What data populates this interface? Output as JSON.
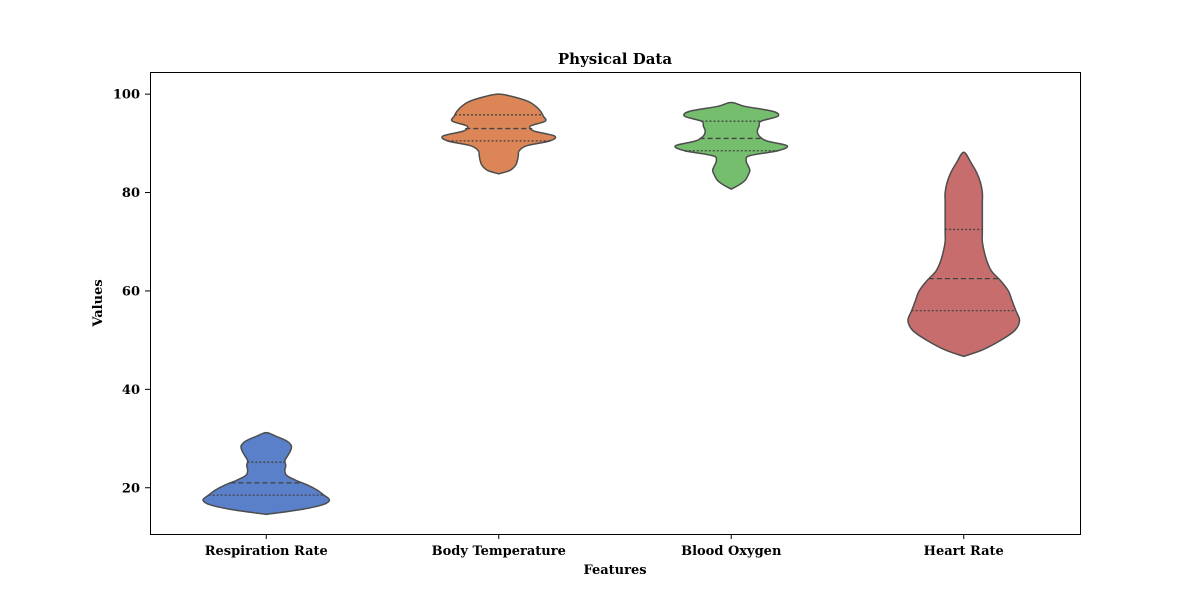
{
  "chart_data": {
    "type": "violin",
    "title": "Physical Data",
    "xlabel": "Features",
    "ylabel": "Values",
    "ylim": [
      10.6,
      104.5
    ],
    "yticks": [
      20,
      40,
      60,
      80,
      100
    ],
    "grid": false,
    "categories": [
      "Respiration Rate",
      "Body Temperature",
      "Blood Oxygen",
      "Heart Rate"
    ],
    "violins": [
      {
        "category": "Respiration Rate",
        "color": "#5a80c9",
        "quartiles": [
          18.5,
          21.0,
          25.2
        ],
        "profile": [
          [
            14.6,
            0.0
          ],
          [
            15.5,
            0.35
          ],
          [
            16.5,
            0.6
          ],
          [
            17.5,
            0.68
          ],
          [
            18.5,
            0.62
          ],
          [
            19.5,
            0.55
          ],
          [
            20.5,
            0.45
          ],
          [
            21.5,
            0.32
          ],
          [
            22.5,
            0.22
          ],
          [
            23.5,
            0.2
          ],
          [
            24.5,
            0.21
          ],
          [
            25.5,
            0.2
          ],
          [
            26.5,
            0.23
          ],
          [
            27.5,
            0.26
          ],
          [
            28.5,
            0.27
          ],
          [
            29.5,
            0.22
          ],
          [
            30.5,
            0.1
          ],
          [
            31.2,
            0.0
          ]
        ]
      },
      {
        "category": "Body Temperature",
        "color": "#dc8658",
        "quartiles": [
          90.5,
          93.0,
          95.8
        ],
        "profile": [
          [
            83.8,
            0.0
          ],
          [
            84.5,
            0.12
          ],
          [
            85.5,
            0.18
          ],
          [
            86.5,
            0.2
          ],
          [
            87.5,
            0.21
          ],
          [
            88.5,
            0.22
          ],
          [
            89.5,
            0.3
          ],
          [
            90.5,
            0.55
          ],
          [
            91.5,
            0.6
          ],
          [
            92.5,
            0.38
          ],
          [
            93.5,
            0.34
          ],
          [
            94.5,
            0.5
          ],
          [
            95.5,
            0.48
          ],
          [
            96.5,
            0.45
          ],
          [
            97.5,
            0.4
          ],
          [
            98.5,
            0.32
          ],
          [
            99.5,
            0.15
          ],
          [
            100.0,
            0.0
          ]
        ]
      },
      {
        "category": "Blood Oxygen",
        "color": "#75be6e",
        "quartiles": [
          88.5,
          91.0,
          94.5
        ],
        "profile": [
          [
            80.7,
            0.0
          ],
          [
            81.5,
            0.08
          ],
          [
            82.5,
            0.15
          ],
          [
            83.5,
            0.18
          ],
          [
            84.5,
            0.2
          ],
          [
            85.5,
            0.18
          ],
          [
            86.5,
            0.16
          ],
          [
            87.5,
            0.2
          ],
          [
            88.5,
            0.5
          ],
          [
            89.5,
            0.6
          ],
          [
            90.5,
            0.38
          ],
          [
            91.5,
            0.3
          ],
          [
            92.5,
            0.28
          ],
          [
            93.5,
            0.3
          ],
          [
            94.5,
            0.32
          ],
          [
            95.5,
            0.5
          ],
          [
            96.5,
            0.45
          ],
          [
            97.5,
            0.15
          ],
          [
            98.3,
            0.0
          ]
        ]
      },
      {
        "category": "Heart Rate",
        "color": "#c76d6d",
        "quartiles": [
          56.0,
          62.5,
          72.5
        ],
        "profile": [
          [
            46.7,
            0.0
          ],
          [
            48.0,
            0.2
          ],
          [
            50.0,
            0.4
          ],
          [
            52.0,
            0.55
          ],
          [
            54.0,
            0.6
          ],
          [
            56.0,
            0.56
          ],
          [
            58.0,
            0.52
          ],
          [
            60.0,
            0.48
          ],
          [
            62.0,
            0.4
          ],
          [
            64.0,
            0.3
          ],
          [
            66.0,
            0.25
          ],
          [
            68.0,
            0.22
          ],
          [
            70.0,
            0.2
          ],
          [
            72.0,
            0.2
          ],
          [
            74.0,
            0.2
          ],
          [
            76.0,
            0.2
          ],
          [
            78.0,
            0.2
          ],
          [
            80.0,
            0.2
          ],
          [
            82.0,
            0.18
          ],
          [
            84.0,
            0.14
          ],
          [
            86.0,
            0.08
          ],
          [
            88.2,
            0.0
          ]
        ]
      }
    ]
  }
}
